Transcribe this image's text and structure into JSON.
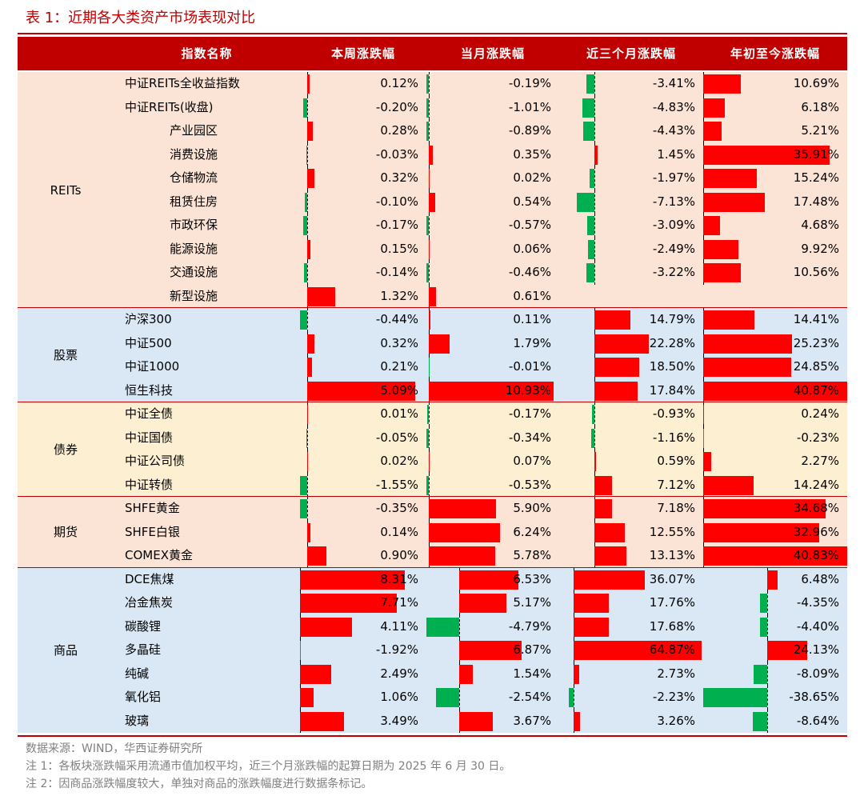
{
  "title": "表 1：近期各大类资产市场表现对比",
  "headers": {
    "name": "指数名称",
    "week": "本周涨跌幅",
    "month": "当月涨跌幅",
    "three_month": "近三个月涨跌幅",
    "ytd": "年初至今涨跌幅"
  },
  "colors": {
    "accent": "#c00000",
    "positive": "#ff0000",
    "negative": "#00b050"
  },
  "groups": [
    {
      "label": "REITs",
      "bg": "#fbe3d6",
      "rows": [
        {
          "name": "中证REITs全收益指数",
          "indent": false,
          "week": 0.12,
          "month": -0.19,
          "three_month": -3.41,
          "ytd": 10.69,
          "week_text": "0.12%",
          "month_text": "-0.19%",
          "three_month_text": "-3.41%",
          "ytd_text": "10.69%"
        },
        {
          "name": "中证REITs(收盘)",
          "indent": false,
          "week": -0.2,
          "month": -1.01,
          "three_month": -4.83,
          "ytd": 6.18,
          "week_text": "-0.20%",
          "month_text": "-1.01%",
          "three_month_text": "-4.83%",
          "ytd_text": "6.18%"
        },
        {
          "name": "产业园区",
          "indent": true,
          "week": 0.28,
          "month": -0.89,
          "three_month": -4.43,
          "ytd": 5.21,
          "week_text": "0.28%",
          "month_text": "-0.89%",
          "three_month_text": "-4.43%",
          "ytd_text": "5.21%"
        },
        {
          "name": "消费设施",
          "indent": true,
          "week": -0.03,
          "month": 0.35,
          "three_month": 1.45,
          "ytd": 35.91,
          "week_text": "-0.03%",
          "month_text": "0.35%",
          "three_month_text": "1.45%",
          "ytd_text": "35.91%"
        },
        {
          "name": "仓储物流",
          "indent": true,
          "week": 0.32,
          "month": 0.02,
          "three_month": -1.97,
          "ytd": 15.24,
          "week_text": "0.32%",
          "month_text": "0.02%",
          "three_month_text": "-1.97%",
          "ytd_text": "15.24%"
        },
        {
          "name": "租赁住房",
          "indent": true,
          "week": -0.1,
          "month": 0.54,
          "three_month": -7.13,
          "ytd": 17.48,
          "week_text": "-0.10%",
          "month_text": "0.54%",
          "three_month_text": "-7.13%",
          "ytd_text": "17.48%"
        },
        {
          "name": "市政环保",
          "indent": true,
          "week": -0.17,
          "month": -0.57,
          "three_month": -3.09,
          "ytd": 4.68,
          "week_text": "-0.17%",
          "month_text": "-0.57%",
          "three_month_text": "-3.09%",
          "ytd_text": "4.68%"
        },
        {
          "name": "能源设施",
          "indent": true,
          "week": 0.15,
          "month": 0.06,
          "three_month": -2.49,
          "ytd": 9.92,
          "week_text": "0.15%",
          "month_text": "0.06%",
          "three_month_text": "-2.49%",
          "ytd_text": "9.92%"
        },
        {
          "name": "交通设施",
          "indent": true,
          "week": -0.14,
          "month": -0.46,
          "three_month": -3.22,
          "ytd": 10.56,
          "week_text": "-0.14%",
          "month_text": "-0.46%",
          "three_month_text": "-3.22%",
          "ytd_text": "10.56%"
        },
        {
          "name": "新型设施",
          "indent": true,
          "week": 1.32,
          "month": 0.61,
          "three_month": null,
          "ytd": null,
          "week_text": "1.32%",
          "month_text": "0.61%",
          "three_month_text": "",
          "ytd_text": ""
        }
      ]
    },
    {
      "label": "股票",
      "bg": "#dae8f5",
      "rows": [
        {
          "name": "沪深300",
          "indent": false,
          "week": -0.44,
          "month": 0.11,
          "three_month": 14.79,
          "ytd": 14.41,
          "week_text": "-0.44%",
          "month_text": "0.11%",
          "three_month_text": "14.79%",
          "ytd_text": "14.41%"
        },
        {
          "name": "中证500",
          "indent": false,
          "week": 0.32,
          "month": 1.79,
          "three_month": 22.28,
          "ytd": 25.23,
          "week_text": "0.32%",
          "month_text": "1.79%",
          "three_month_text": "22.28%",
          "ytd_text": "25.23%"
        },
        {
          "name": "中证1000",
          "indent": false,
          "week": 0.21,
          "month": -0.01,
          "three_month": 18.5,
          "ytd": 24.85,
          "week_text": "0.21%",
          "month_text": "-0.01%",
          "three_month_text": "18.50%",
          "ytd_text": "24.85%"
        },
        {
          "name": "恒生科技",
          "indent": false,
          "week": 5.09,
          "month": 10.93,
          "three_month": 17.84,
          "ytd": 40.87,
          "week_text": "5.09%",
          "month_text": "10.93%",
          "three_month_text": "17.84%",
          "ytd_text": "40.87%"
        }
      ]
    },
    {
      "label": "债券",
      "bg": "#fdf0d2",
      "rows": [
        {
          "name": "中证全债",
          "indent": false,
          "week": 0.01,
          "month": -0.17,
          "three_month": -0.93,
          "ytd": 0.24,
          "week_text": "0.01%",
          "month_text": "-0.17%",
          "three_month_text": "-0.93%",
          "ytd_text": "0.24%"
        },
        {
          "name": "中证国债",
          "indent": false,
          "week": -0.05,
          "month": -0.34,
          "three_month": -1.16,
          "ytd": -0.23,
          "week_text": "-0.05%",
          "month_text": "-0.34%",
          "three_month_text": "-1.16%",
          "ytd_text": "-0.23%"
        },
        {
          "name": "中证公司债",
          "indent": false,
          "week": 0.02,
          "month": 0.07,
          "three_month": 0.59,
          "ytd": 2.27,
          "week_text": "0.02%",
          "month_text": "0.07%",
          "three_month_text": "0.59%",
          "ytd_text": "2.27%"
        },
        {
          "name": "中证转债",
          "indent": false,
          "week": -1.55,
          "month": -0.53,
          "three_month": 7.12,
          "ytd": 14.24,
          "week_text": "-1.55%",
          "month_text": "-0.53%",
          "three_month_text": "7.12%",
          "ytd_text": "14.24%"
        }
      ]
    },
    {
      "label": "期货",
      "bg": "#fbe3d6",
      "rows": [
        {
          "name": "SHFE黄金",
          "indent": false,
          "week": -0.35,
          "month": 5.9,
          "three_month": 7.18,
          "ytd": 34.68,
          "week_text": "-0.35%",
          "month_text": "5.90%",
          "three_month_text": "7.18%",
          "ytd_text": "34.68%"
        },
        {
          "name": "SHFE白银",
          "indent": false,
          "week": 0.14,
          "month": 6.24,
          "three_month": 12.55,
          "ytd": 32.96,
          "week_text": "0.14%",
          "month_text": "6.24%",
          "three_month_text": "12.55%",
          "ytd_text": "32.96%"
        },
        {
          "name": "COMEX黄金",
          "indent": false,
          "week": 0.9,
          "month": 5.78,
          "three_month": 13.13,
          "ytd": 40.83,
          "week_text": "0.90%",
          "month_text": "5.78%",
          "three_month_text": "13.13%",
          "ytd_text": "40.83%"
        }
      ]
    },
    {
      "label": "商品",
      "bg": "#dae8f5",
      "rows": [
        {
          "name": "DCE焦煤",
          "indent": false,
          "week": 8.31,
          "month": 6.53,
          "three_month": 36.07,
          "ytd": 6.48,
          "week_text": "8.31%",
          "month_text": "6.53%",
          "three_month_text": "36.07%",
          "ytd_text": "6.48%"
        },
        {
          "name": "冶金焦炭",
          "indent": false,
          "week": 7.71,
          "month": 5.17,
          "three_month": 17.76,
          "ytd": -4.35,
          "week_text": "7.71%",
          "month_text": "5.17%",
          "three_month_text": "17.76%",
          "ytd_text": "-4.35%"
        },
        {
          "name": "碳酸锂",
          "indent": false,
          "week": 4.11,
          "month": -4.79,
          "three_month": 17.68,
          "ytd": -4.4,
          "week_text": "4.11%",
          "month_text": "-4.79%",
          "three_month_text": "17.68%",
          "ytd_text": "-4.40%"
        },
        {
          "name": "多晶硅",
          "indent": false,
          "week": -1.92,
          "month": 6.87,
          "three_month": 64.87,
          "ytd": 24.13,
          "week_text": "-1.92%",
          "month_text": "6.87%",
          "three_month_text": "64.87%",
          "ytd_text": "24.13%"
        },
        {
          "name": "纯碱",
          "indent": false,
          "week": 2.49,
          "month": 1.54,
          "three_month": 2.73,
          "ytd": -8.09,
          "week_text": "2.49%",
          "month_text": "1.54%",
          "three_month_text": "2.73%",
          "ytd_text": "-8.09%"
        },
        {
          "name": "氧化铝",
          "indent": false,
          "week": 1.06,
          "month": -2.54,
          "three_month": -2.23,
          "ytd": -38.65,
          "week_text": "1.06%",
          "month_text": "-2.54%",
          "three_month_text": "-2.23%",
          "ytd_text": "-38.65%"
        },
        {
          "name": "玻璃",
          "indent": false,
          "week": 3.49,
          "month": 3.67,
          "three_month": 3.26,
          "ytd": -8.64,
          "week_text": "3.49%",
          "month_text": "3.67%",
          "three_month_text": "3.26%",
          "ytd_text": "-8.64%"
        }
      ]
    }
  ],
  "notes": [
    "数据来源：WIND，华西证券研究所",
    "注 1：各板块涨跌幅采用流通市值加权平均，近三个月涨跌幅的起算日期为 2025 年 6 月 30 日。",
    "注 2：因商品涨跌幅度较大，单独对商品的涨跌幅度进行数据条标记。"
  ]
}
